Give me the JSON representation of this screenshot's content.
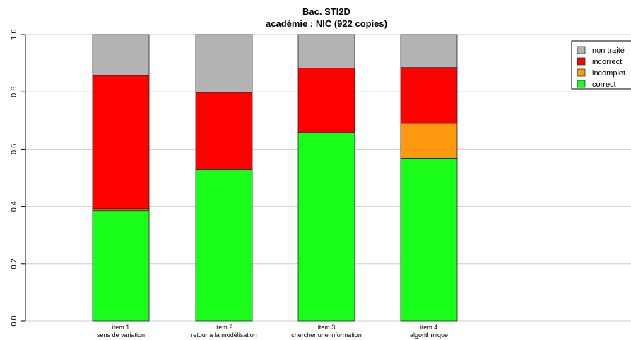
{
  "chart_data": {
    "type": "bar",
    "stacked": true,
    "title": "Bac. STI2D",
    "subtitle": "académie : NIC (922 copies)",
    "ylim": [
      0,
      1
    ],
    "yticks": [
      "0.0",
      "0.2",
      "0.4",
      "0.6",
      "0.8",
      "1.0"
    ],
    "grid": true,
    "legend_position": "top-right",
    "categories": [
      {
        "line1": "item 1",
        "line2": "sens de variation"
      },
      {
        "line1": "item 2",
        "line2": "retour à la modélisation"
      },
      {
        "line1": "item 3",
        "line2": "chercher une information"
      },
      {
        "line1": "item 4",
        "line2": "algorithmique"
      }
    ],
    "series": [
      {
        "name": "correct",
        "color": "#1aff1a",
        "values": [
          0.385,
          0.528,
          0.658,
          0.568
        ]
      },
      {
        "name": "incomplet",
        "color": "#ff9910",
        "values": [
          0.007,
          0.0,
          0.0,
          0.122
        ]
      },
      {
        "name": "incorrect",
        "color": "#ff0000",
        "values": [
          0.465,
          0.27,
          0.225,
          0.195
        ]
      },
      {
        "name": "non traité",
        "color": "#b3b3b3",
        "values": [
          0.143,
          0.202,
          0.117,
          0.115
        ]
      }
    ],
    "legend_order": [
      "non traité",
      "incorrect",
      "incomplet",
      "correct"
    ]
  }
}
